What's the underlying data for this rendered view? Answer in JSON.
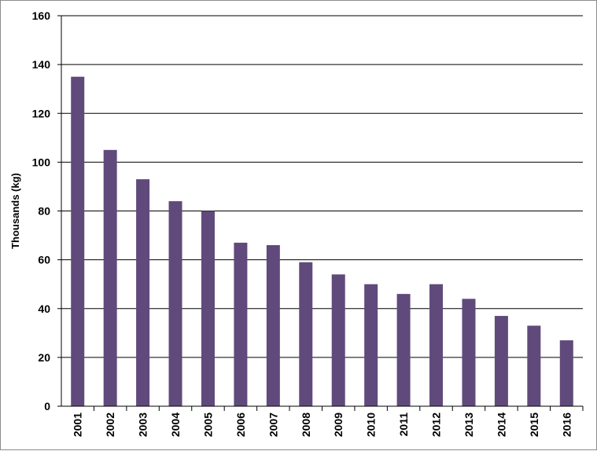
{
  "chart_data": {
    "type": "bar",
    "title": "",
    "xlabel": "",
    "ylabel": "Thousands (kg)",
    "categories": [
      "2001",
      "2002",
      "2003",
      "2004",
      "2005",
      "2006",
      "2007",
      "2008",
      "2009",
      "2010",
      "2011",
      "2012",
      "2013",
      "2014",
      "2015",
      "2016"
    ],
    "values": [
      135,
      105,
      93,
      84,
      80,
      67,
      66,
      59,
      54,
      50,
      46,
      50,
      44,
      37,
      33,
      27
    ],
    "ylim": [
      0,
      160
    ],
    "yticks": [
      0,
      20,
      40,
      60,
      80,
      100,
      120,
      140,
      160
    ],
    "grid": true,
    "legend": "none",
    "bar_color": "#604A7B"
  }
}
